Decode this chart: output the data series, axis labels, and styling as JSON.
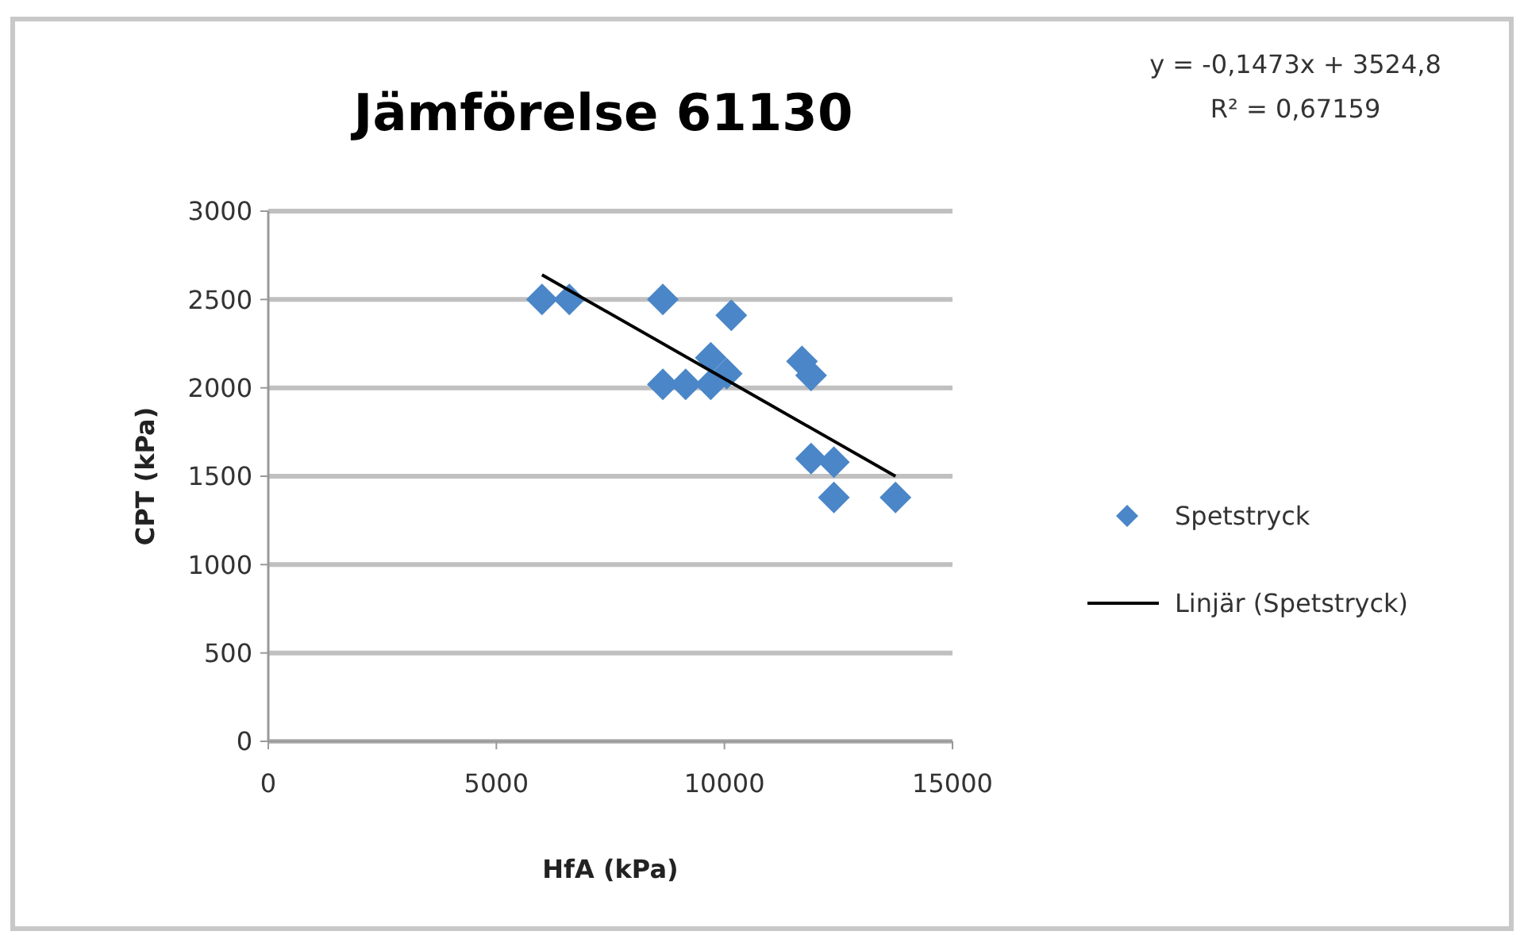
{
  "chart_data": {
    "type": "scatter",
    "title": "Jämförelse 61130",
    "xlabel": "HfA (kPa)",
    "ylabel": "CPT (kPa)",
    "annotations": [
      "y = -0,1473x + 3524,8",
      "R² = 0,67159"
    ],
    "xlim": [
      0,
      15000
    ],
    "xticks": [
      0,
      5000,
      10000,
      15000
    ],
    "ylim": [
      0,
      3000
    ],
    "yticks": [
      0,
      500,
      1000,
      1500,
      2000,
      2500,
      3000
    ],
    "grid": "y",
    "legend": "right",
    "series": [
      {
        "name": "Spetstryck",
        "color": "#4a86c8",
        "marker": "diamond",
        "x": [
          6000,
          6600,
          8650,
          10150,
          8650,
          9150,
          9700,
          9700,
          10050,
          11700,
          11900,
          11900,
          12400,
          12400,
          13750
        ],
        "values": [
          2500,
          2500,
          2500,
          2410,
          2020,
          2020,
          2020,
          2170,
          2080,
          2150,
          2070,
          1600,
          1580,
          1380,
          1380
        ]
      },
      {
        "name": "Linjär (Spetstryck)",
        "type": "line",
        "color": "#000000",
        "line_style": "solid",
        "x": [
          6000,
          13750
        ],
        "values": [
          2640,
          1500
        ]
      }
    ]
  }
}
